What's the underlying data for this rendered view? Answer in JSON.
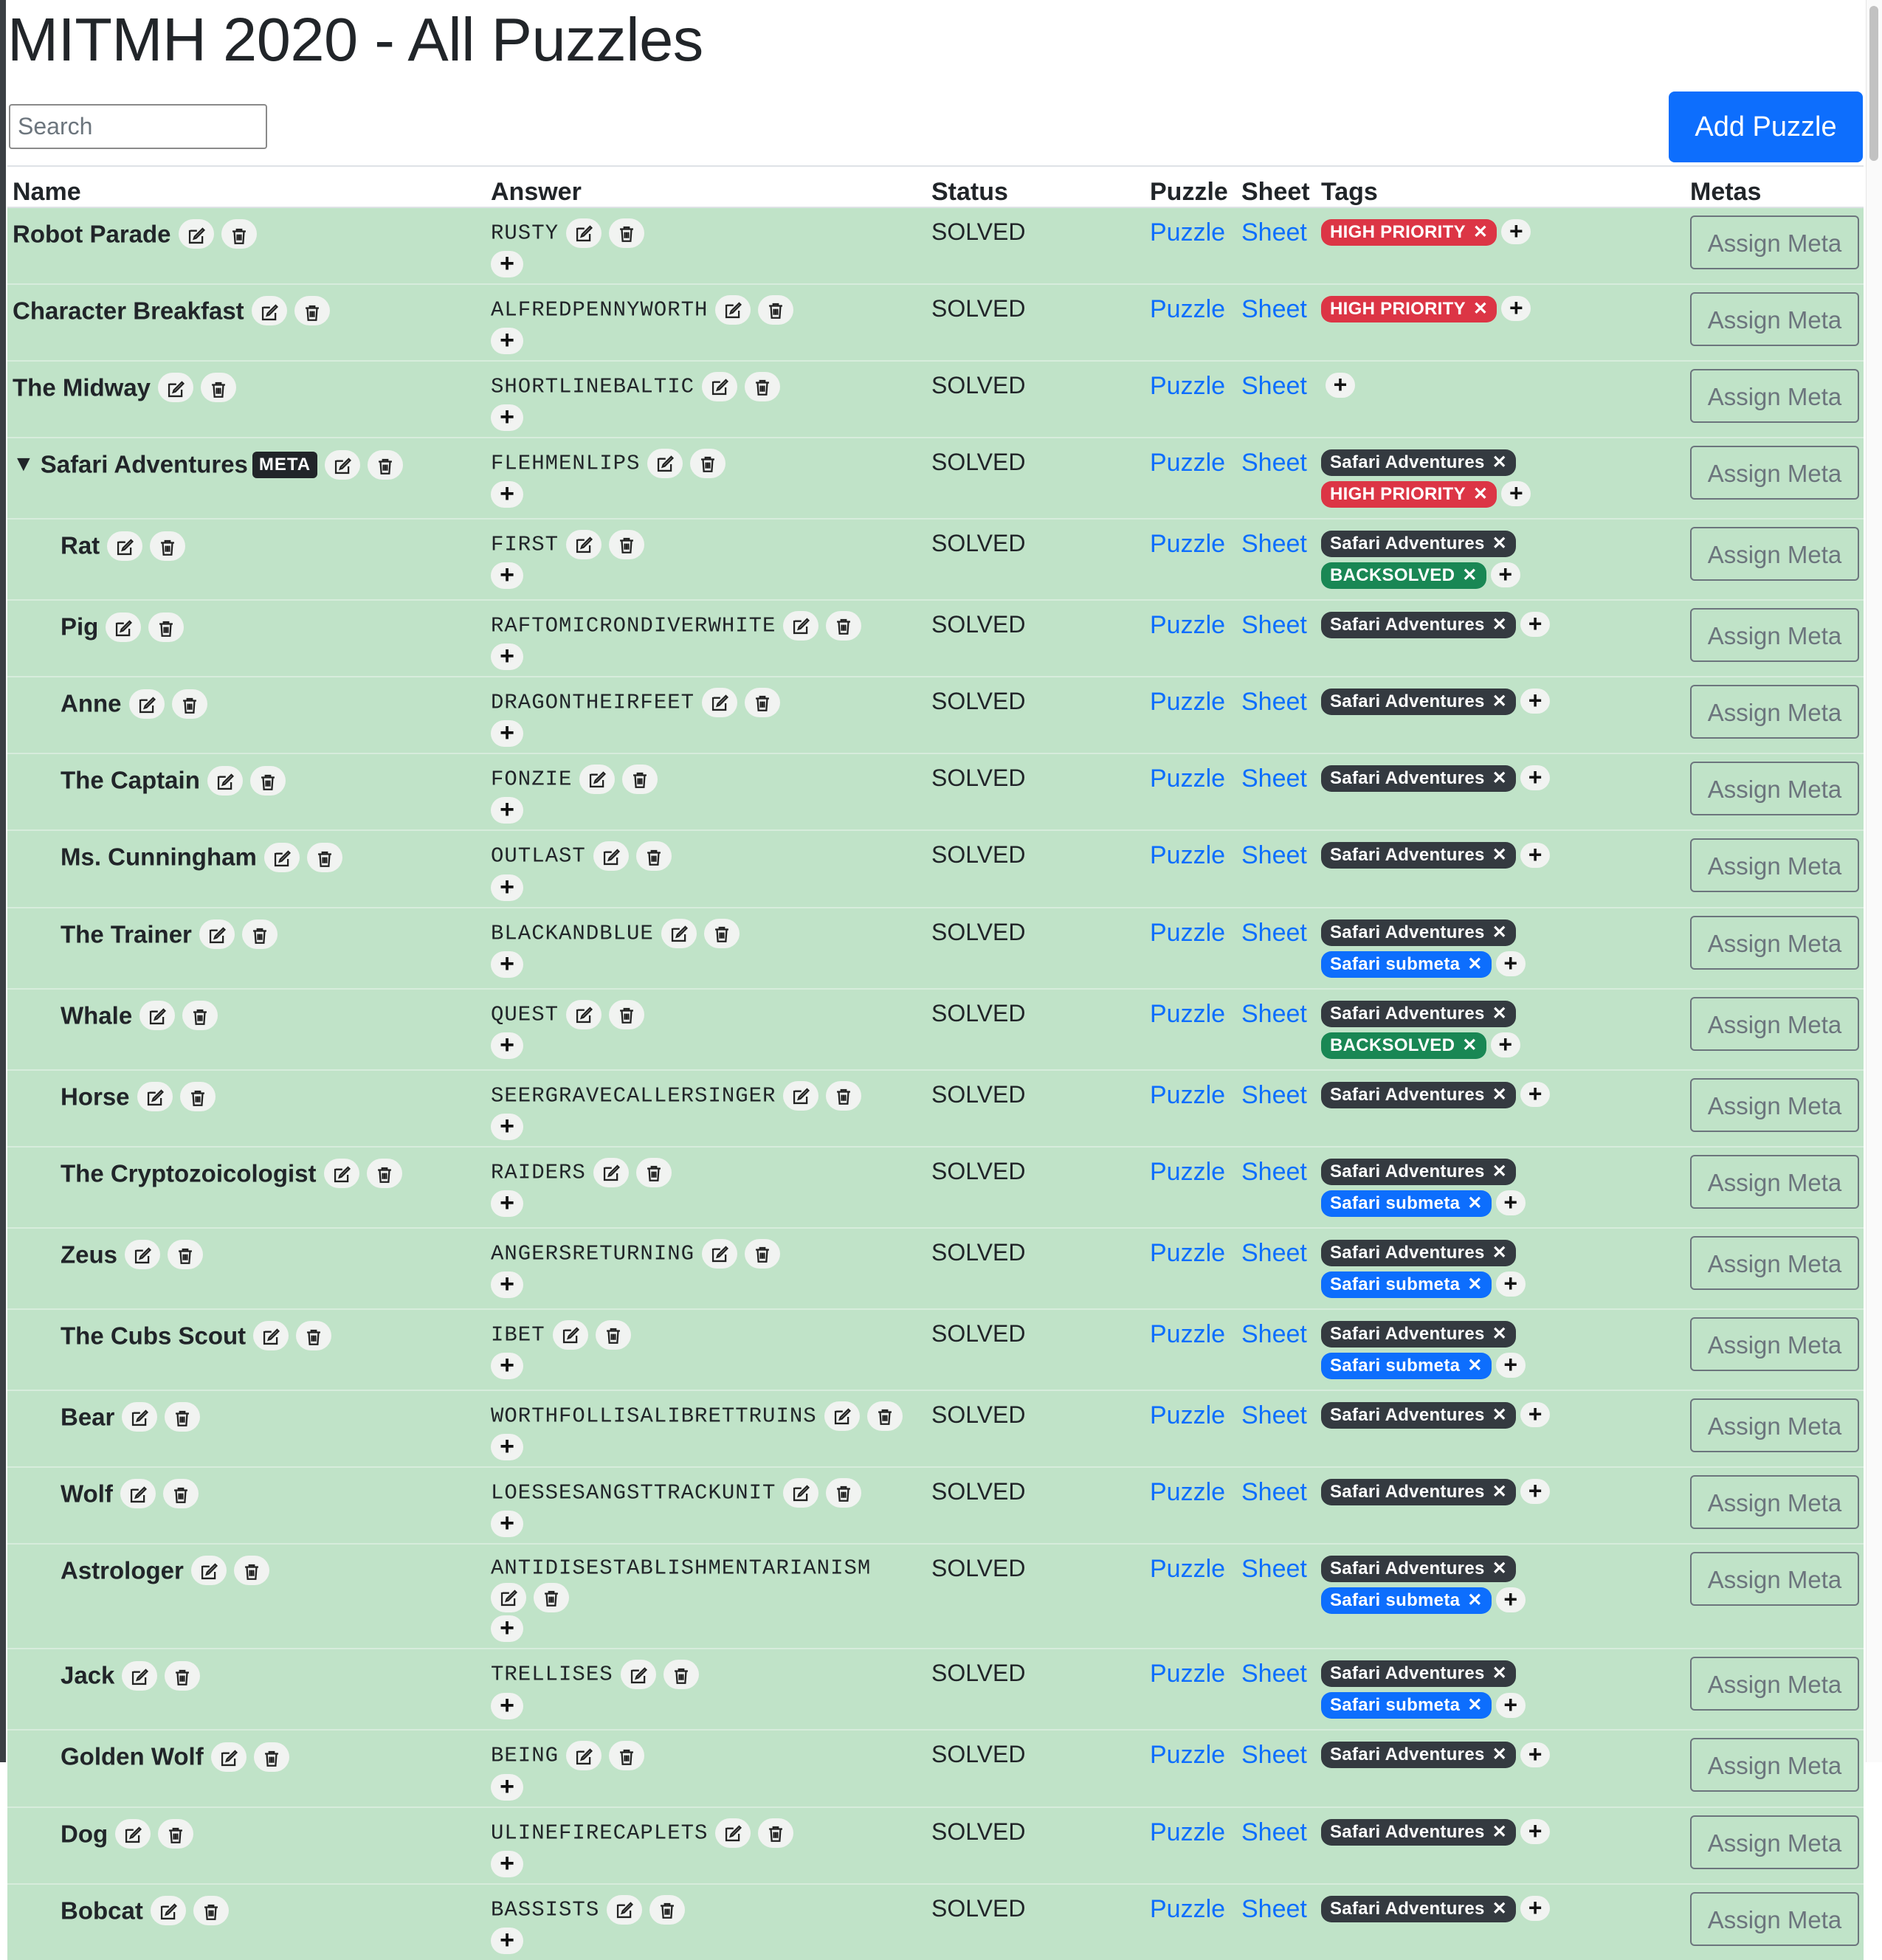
{
  "page": {
    "title": "MITMH 2020 - All Puzzles",
    "search_placeholder": "Search",
    "search_value": "",
    "add_button": "Add Puzzle"
  },
  "table": {
    "headers": [
      "Name",
      "Answer",
      "Status",
      "Puzzle",
      "Sheet",
      "Tags",
      "Metas"
    ],
    "puzzle_link_label": "Puzzle",
    "sheet_link_label": "Sheet",
    "assign_meta_label": "Assign Meta",
    "meta_badge_label": "META",
    "expand_icon": "caret-down-icon",
    "rows": [
      {
        "name": "Robot Parade",
        "answer": "RUSTY",
        "status": "SOLVED",
        "tags": [
          {
            "label": "HIGH PRIORITY",
            "color": "#dc3545"
          }
        ]
      },
      {
        "name": "Character Breakfast",
        "answer": "ALFREDPENNYWORTH",
        "status": "SOLVED",
        "tags": [
          {
            "label": "HIGH PRIORITY",
            "color": "#dc3545"
          }
        ]
      },
      {
        "name": "The Midway",
        "answer": "SHORTLINEBALTIC",
        "status": "SOLVED",
        "tags": []
      },
      {
        "name": "Safari Adventures",
        "is_meta": true,
        "answer": "FLEHMENLIPS",
        "status": "SOLVED",
        "tags": [
          {
            "label": "Safari Adventures",
            "color": "#343a40"
          },
          {
            "label": "HIGH PRIORITY",
            "color": "#dc3545"
          }
        ]
      },
      {
        "name": "Rat",
        "child": true,
        "answer": "FIRST",
        "status": "SOLVED",
        "tags": [
          {
            "label": "Safari Adventures",
            "color": "#343a40"
          },
          {
            "label": "BACKSOLVED",
            "color": "#198754"
          }
        ]
      },
      {
        "name": "Pig",
        "child": true,
        "answer": "RAFTOMICRONDIVERWHITE",
        "status": "SOLVED",
        "tags": [
          {
            "label": "Safari Adventures",
            "color": "#343a40"
          }
        ]
      },
      {
        "name": "Anne",
        "child": true,
        "answer": "DRAGONTHEIRFEET",
        "status": "SOLVED",
        "tags": [
          {
            "label": "Safari Adventures",
            "color": "#343a40"
          }
        ]
      },
      {
        "name": "The Captain",
        "child": true,
        "answer": "FONZIE",
        "status": "SOLVED",
        "tags": [
          {
            "label": "Safari Adventures",
            "color": "#343a40"
          }
        ]
      },
      {
        "name": "Ms. Cunningham",
        "child": true,
        "answer": "OUTLAST",
        "status": "SOLVED",
        "tags": [
          {
            "label": "Safari Adventures",
            "color": "#343a40"
          }
        ]
      },
      {
        "name": "The Trainer",
        "child": true,
        "answer": "BLACKANDBLUE",
        "status": "SOLVED",
        "tags": [
          {
            "label": "Safari Adventures",
            "color": "#343a40"
          },
          {
            "label": "Safari submeta",
            "color": "#0d6efd"
          }
        ]
      },
      {
        "name": "Whale",
        "child": true,
        "answer": "QUEST",
        "status": "SOLVED",
        "tags": [
          {
            "label": "Safari Adventures",
            "color": "#343a40"
          },
          {
            "label": "BACKSOLVED",
            "color": "#198754"
          }
        ]
      },
      {
        "name": "Horse",
        "child": true,
        "answer": "SEERGRAVECALLERSINGER",
        "status": "SOLVED",
        "tags": [
          {
            "label": "Safari Adventures",
            "color": "#343a40"
          }
        ]
      },
      {
        "name": "The Cryptozoicologist",
        "child": true,
        "answer": "RAIDERS",
        "status": "SOLVED",
        "tags": [
          {
            "label": "Safari Adventures",
            "color": "#343a40"
          },
          {
            "label": "Safari submeta",
            "color": "#0d6efd"
          }
        ]
      },
      {
        "name": "Zeus",
        "child": true,
        "answer": "ANGERSRETURNING",
        "status": "SOLVED",
        "tags": [
          {
            "label": "Safari Adventures",
            "color": "#343a40"
          },
          {
            "label": "Safari submeta",
            "color": "#0d6efd"
          }
        ]
      },
      {
        "name": "The Cubs Scout",
        "child": true,
        "answer": "IBET",
        "status": "SOLVED",
        "tags": [
          {
            "label": "Safari Adventures",
            "color": "#343a40"
          },
          {
            "label": "Safari submeta",
            "color": "#0d6efd"
          }
        ]
      },
      {
        "name": "Bear",
        "child": true,
        "answer": "WORTHFOLLISALIBRETTRUINS",
        "status": "SOLVED",
        "tags": [
          {
            "label": "Safari Adventures",
            "color": "#343a40"
          }
        ]
      },
      {
        "name": "Wolf",
        "child": true,
        "answer": "LOESSESANGSTTRACKUNIT",
        "status": "SOLVED",
        "tags": [
          {
            "label": "Safari Adventures",
            "color": "#343a40"
          }
        ]
      },
      {
        "name": "Astrologer",
        "child": true,
        "answer": "ANTIDISESTABLISHMENTARIANISM",
        "status": "SOLVED",
        "wrap_icons": true,
        "tags": [
          {
            "label": "Safari Adventures",
            "color": "#343a40"
          },
          {
            "label": "Safari submeta",
            "color": "#0d6efd"
          }
        ]
      },
      {
        "name": "Jack",
        "child": true,
        "answer": "TRELLISES",
        "status": "SOLVED",
        "tags": [
          {
            "label": "Safari Adventures",
            "color": "#343a40"
          },
          {
            "label": "Safari submeta",
            "color": "#0d6efd"
          }
        ]
      },
      {
        "name": "Golden Wolf",
        "child": true,
        "answer": "BEING",
        "status": "SOLVED",
        "tags": [
          {
            "label": "Safari Adventures",
            "color": "#343a40"
          }
        ]
      },
      {
        "name": "Dog",
        "child": true,
        "answer": "ULINEFIRECAPLETS",
        "status": "SOLVED",
        "tags": [
          {
            "label": "Safari Adventures",
            "color": "#343a40"
          }
        ]
      },
      {
        "name": "Bobcat",
        "child": true,
        "answer": "BASSISTS",
        "status": "SOLVED",
        "tags": [
          {
            "label": "Safari Adventures",
            "color": "#343a40"
          }
        ]
      }
    ]
  }
}
